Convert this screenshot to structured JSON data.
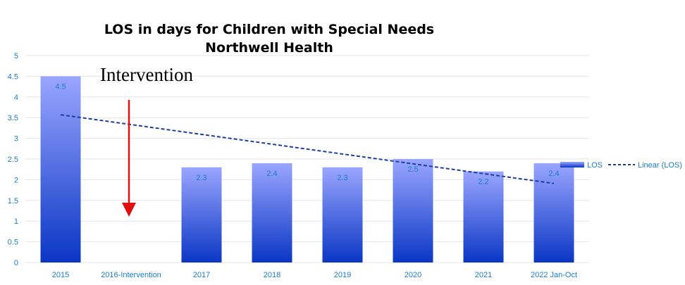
{
  "chart_data": {
    "type": "bar",
    "title": "LOS in days for Children with Special Needs",
    "subtitle": "Northwell Health",
    "categories": [
      "2015",
      "2016-Intervention",
      "2017",
      "2018",
      "2019",
      "2020",
      "2021",
      "2022 Jan-Oct"
    ],
    "series": [
      {
        "name": "LOS",
        "values": [
          4.5,
          null,
          2.3,
          2.4,
          2.3,
          2.5,
          2.2,
          2.4
        ]
      }
    ],
    "data_labels": [
      "4.5",
      "",
      "2.3",
      "2.4",
      "2.3",
      "2.5",
      "2.2",
      "2.4"
    ],
    "trendline": {
      "name": "Linear (LOS)",
      "type": "linear",
      "start": 3.57,
      "end": 1.91
    },
    "ylim": [
      0,
      5
    ],
    "yticks": [
      "0",
      "0.5",
      "1",
      "1.5",
      "2",
      "2.5",
      "3",
      "3.5",
      "4",
      "4.5",
      "5"
    ],
    "grid": true,
    "legend_position": "right",
    "annotation": {
      "text": "Intervention",
      "arrow": "down"
    },
    "colors": {
      "bar_top": "#9aa6ff",
      "bar_bottom": "#0a36c4",
      "trend": "#1f3f9e",
      "arrow": "#e01010",
      "tick_text": "#1b7cc8",
      "grid": "#e6e6e6"
    }
  }
}
